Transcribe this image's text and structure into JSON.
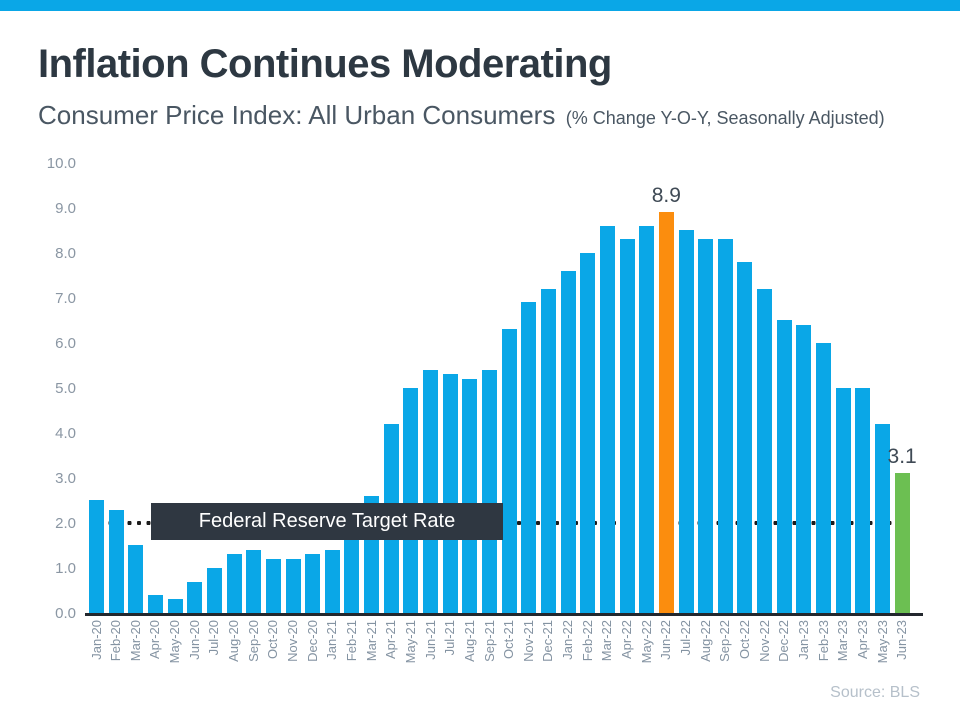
{
  "header": {
    "title": "Inflation Continues Moderating",
    "subtitle": "Consumer Price Index: All Urban Consumers",
    "subtitle_note": "(% Change Y-O-Y, Seasonally Adjusted)"
  },
  "colors": {
    "top_bar": "#0aa7e7",
    "bar_default": "#0aa7e7",
    "bar_highlight_peak": "#fb8d0e",
    "bar_highlight_latest": "#6cbf52",
    "title_text": "#2d3842",
    "subtitle_text": "#4a5763",
    "axis_text": "#8a96a3",
    "target_box_bg": "#2f3741",
    "target_box_text": "#ffffff",
    "source_text": "#b6c0ca"
  },
  "chart_data": {
    "type": "bar",
    "title": "Consumer Price Index: All Urban Consumers (% Change Y-O-Y, Seasonally Adjusted)",
    "xlabel": "",
    "ylabel": "",
    "ylim": [
      0,
      10
    ],
    "grid": false,
    "ytick_labels": [
      "10.0",
      "9.0",
      "8.0",
      "7.0",
      "6.0",
      "5.0",
      "4.0",
      "3.0",
      "2.0",
      "1.0",
      "0.0"
    ],
    "categories": [
      "Jan-20",
      "Feb-20",
      "Mar-20",
      "Apr-20",
      "May-20",
      "Jun-20",
      "Jul-20",
      "Aug-20",
      "Sep-20",
      "Oct-20",
      "Nov-20",
      "Dec-20",
      "Jan-21",
      "Feb-21",
      "Mar-21",
      "Apr-21",
      "May-21",
      "Jun-21",
      "Jul-21",
      "Aug-21",
      "Sep-21",
      "Oct-21",
      "Nov-21",
      "Dec-21",
      "Jan-22",
      "Feb-22",
      "Mar-22",
      "Apr-22",
      "May-22",
      "Jun-22",
      "Jul-22",
      "Aug-22",
      "Sep-22",
      "Oct-22",
      "Nov-22",
      "Dec-22",
      "Jan-23",
      "Feb-23",
      "Mar-23",
      "Apr-23",
      "May-23",
      "Jun-23"
    ],
    "values": [
      2.5,
      2.3,
      1.5,
      0.4,
      0.3,
      0.7,
      1.0,
      1.3,
      1.4,
      1.2,
      1.2,
      1.3,
      1.4,
      1.7,
      2.6,
      4.2,
      5.0,
      5.4,
      5.3,
      5.2,
      5.4,
      6.3,
      6.9,
      7.2,
      7.6,
      8.0,
      8.6,
      8.3,
      8.6,
      8.9,
      8.5,
      8.3,
      8.3,
      7.8,
      7.2,
      6.5,
      6.4,
      6.0,
      5.0,
      5.0,
      4.2,
      3.1
    ],
    "highlights": [
      {
        "category": "Jun-22",
        "value_label": "8.9",
        "color": "#fb8d0e"
      },
      {
        "category": "Jun-23",
        "value_label": "3.1",
        "color": "#6cbf52"
      }
    ],
    "target_line": {
      "value": 2.0,
      "label": "Federal Reserve Target Rate",
      "style": "dotted",
      "color": "#1c1c1c"
    },
    "legend": null,
    "source": "Source: BLS"
  }
}
